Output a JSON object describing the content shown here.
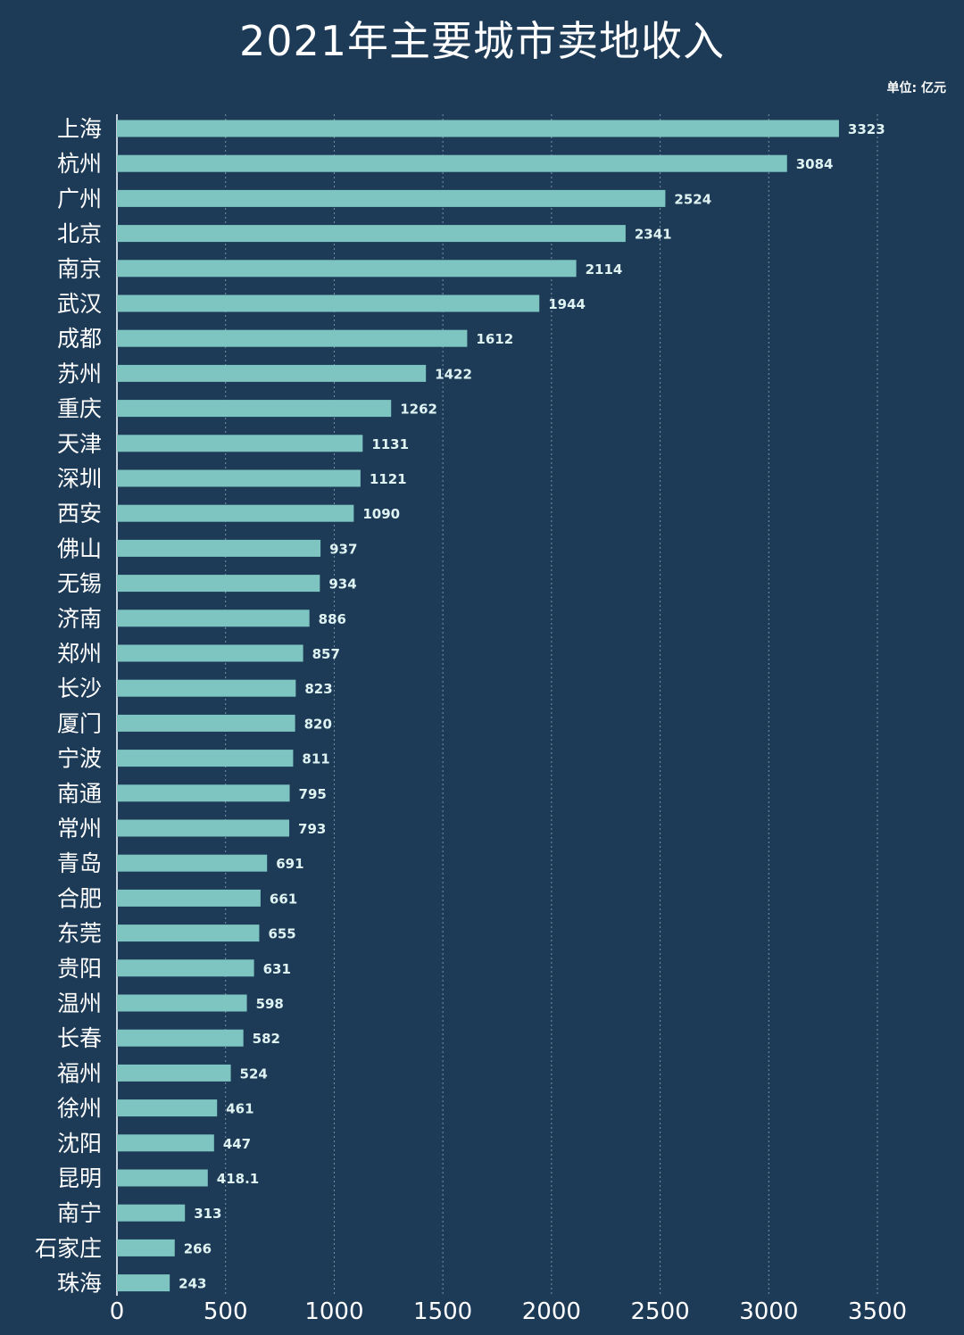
{
  "chart_data": {
    "type": "bar",
    "orientation": "horizontal",
    "title": "2021年主要城市卖地收入",
    "unit": "单位: 亿元",
    "xlabel": "",
    "ylabel": "",
    "xlim": [
      0,
      3500
    ],
    "x_ticks": [
      "0",
      "500",
      "1000",
      "1500",
      "2000",
      "2500",
      "3000",
      "3500"
    ],
    "grid": "vertical dashed",
    "categories": [
      "上海",
      "杭州",
      "广州",
      "北京",
      "南京",
      "武汉",
      "成都",
      "苏州",
      "重庆",
      "天津",
      "深圳",
      "西安",
      "佛山",
      "无锡",
      "济南",
      "郑州",
      "长沙",
      "厦门",
      "宁波",
      "南通",
      "常州",
      "青岛",
      "合肥",
      "东莞",
      "贵阳",
      "温州",
      "长春",
      "福州",
      "徐州",
      "沈阳",
      "昆明",
      "南宁",
      "石家庄",
      "珠海"
    ],
    "values": [
      3323,
      3084,
      2524,
      2341,
      2114,
      1944,
      1612,
      1422,
      1262,
      1131,
      1121,
      1090,
      937,
      934,
      886,
      857,
      823,
      820,
      811,
      795,
      793,
      691,
      661,
      655,
      631,
      598,
      582,
      524,
      461,
      447,
      418.1,
      313,
      266,
      243
    ],
    "value_labels": [
      "3323",
      "3084",
      "2524",
      "2341",
      "2114",
      "1944",
      "1612",
      "1422",
      "1262",
      "1131",
      "1121",
      "1090",
      "937",
      "934",
      "886",
      "857",
      "823",
      "820",
      "811",
      "795",
      "793",
      "691",
      "661",
      "655",
      "631",
      "598",
      "582",
      "524",
      "461",
      "447",
      "418.1",
      "313",
      "266",
      "243"
    ],
    "colors": {
      "background": "#1d3b57",
      "bar": "#7ec5c1",
      "text": "#ffffff"
    }
  }
}
